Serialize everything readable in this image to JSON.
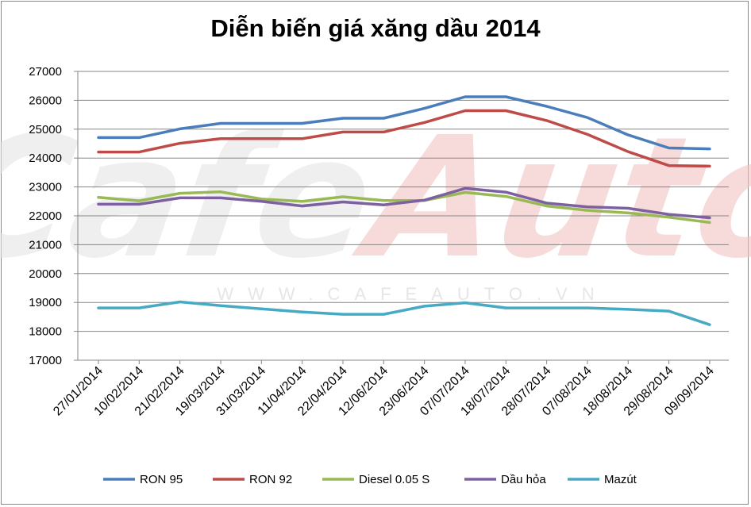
{
  "watermark": {
    "brand": "CafeAuto",
    "url": "WWW.CAFEAUTO.VN"
  },
  "chart_data": {
    "type": "line",
    "title": "Diễn biến giá xăng dầu 2014",
    "xlabel": "",
    "ylabel": "",
    "ylim": [
      17000,
      27000
    ],
    "yticks": [
      17000,
      18000,
      19000,
      20000,
      21000,
      22000,
      23000,
      24000,
      25000,
      26000,
      27000
    ],
    "grid": true,
    "legend_position": "bottom",
    "categories": [
      "27/01/2014",
      "10/02/2014",
      "21/02/2014",
      "19/03/2014",
      "31/03/2014",
      "11/04/2014",
      "22/04/2014",
      "12/06/2014",
      "23/06/2014",
      "07/07/2014",
      "18/07/2014",
      "28/07/2014",
      "07/08/2014",
      "18/08/2014",
      "29/08/2014",
      "09/09/2014"
    ],
    "series": [
      {
        "name": "RON 95",
        "color": "#4a7ebb",
        "values": [
          24710,
          24710,
          25010,
          25200,
          25200,
          25200,
          25380,
          25380,
          25720,
          26120,
          26120,
          25790,
          25400,
          24800,
          24350,
          24320
        ]
      },
      {
        "name": "RON 92",
        "color": "#be4b48",
        "values": [
          24210,
          24210,
          24510,
          24670,
          24670,
          24670,
          24900,
          24900,
          25230,
          25640,
          25640,
          25300,
          24820,
          24220,
          23740,
          23720
        ]
      },
      {
        "name": "Diesel 0.05 S",
        "color": "#98b954",
        "values": [
          22640,
          22520,
          22780,
          22830,
          22580,
          22500,
          22660,
          22530,
          22530,
          22810,
          22670,
          22340,
          22190,
          22100,
          21950,
          21770
        ]
      },
      {
        "name": "Dầu hỏa",
        "color": "#7d60a0",
        "values": [
          22400,
          22400,
          22620,
          22620,
          22500,
          22340,
          22480,
          22380,
          22540,
          22950,
          22820,
          22440,
          22310,
          22260,
          22050,
          21930
        ]
      },
      {
        "name": "Mazút",
        "color": "#46aac5",
        "values": [
          18810,
          18810,
          19020,
          18890,
          18780,
          18670,
          18590,
          18590,
          18870,
          18990,
          18810,
          18810,
          18810,
          18760,
          18700,
          18230
        ]
      }
    ]
  }
}
